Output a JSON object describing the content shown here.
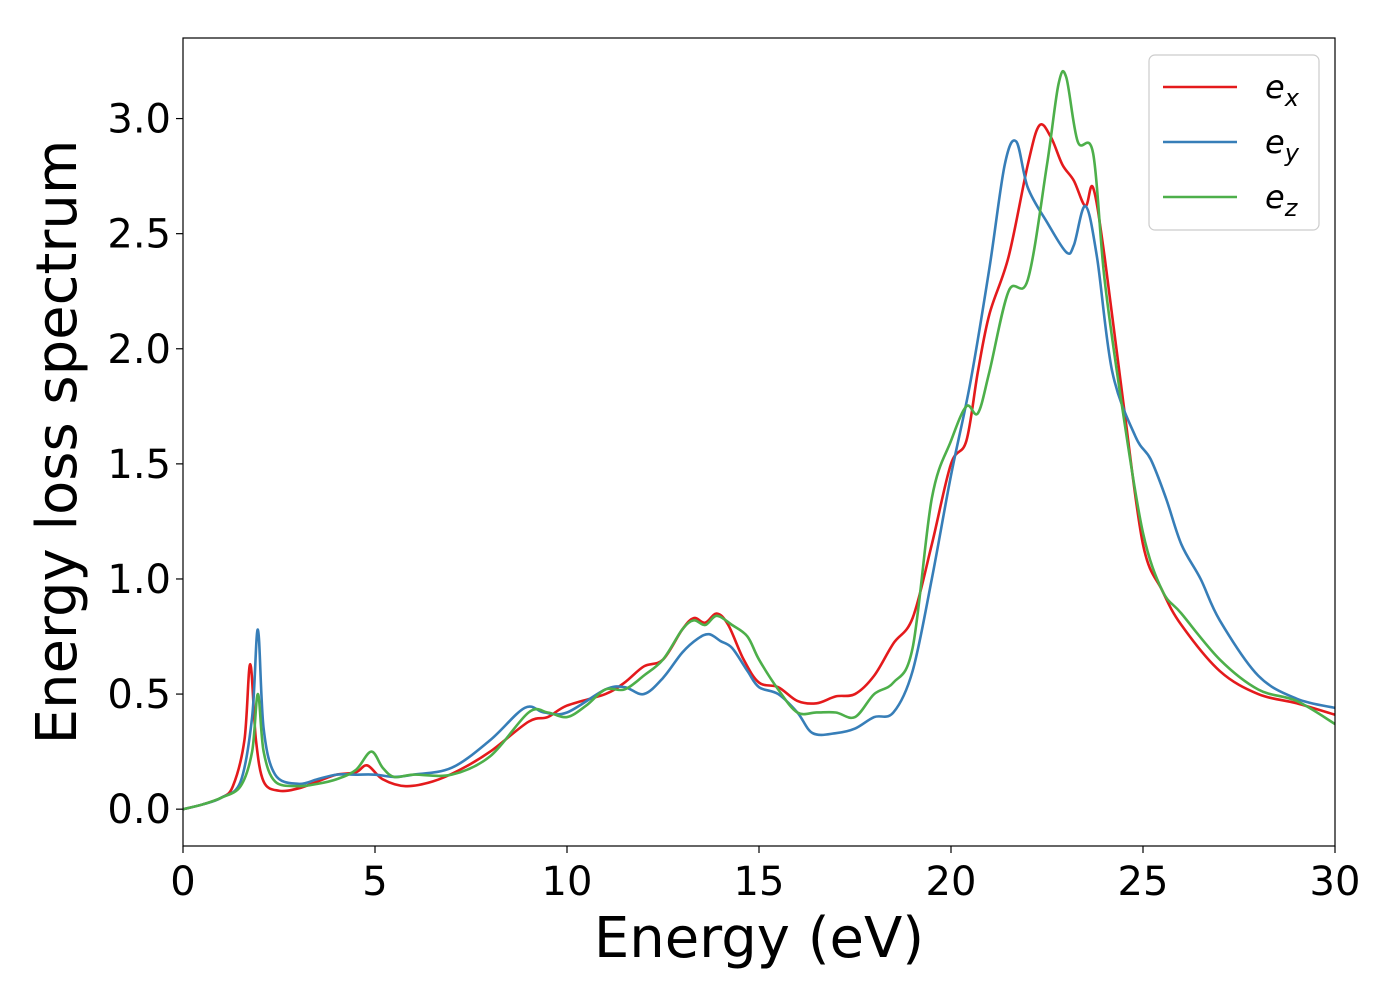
{
  "chart_data": {
    "type": "line",
    "xlabel": "Energy (eV)",
    "ylabel": "Energy loss spectrum",
    "xlim": [
      0,
      30
    ],
    "ylim": [
      -0.16,
      3.35
    ],
    "xticks": [
      0,
      5,
      10,
      15,
      20,
      25,
      30
    ],
    "xtick_labels": [
      "0",
      "5",
      "10",
      "15",
      "20",
      "25",
      "30"
    ],
    "yticks": [
      0.0,
      0.5,
      1.0,
      1.5,
      2.0,
      2.5,
      3.0
    ],
    "ytick_labels": [
      "0.0",
      "0.5",
      "1.0",
      "1.5",
      "2.0",
      "2.5",
      "3.0"
    ],
    "grid": false,
    "legend_position": "top-right",
    "series": [
      {
        "name": "e",
        "subscript": "x",
        "color": "#e41a1c",
        "x": [
          0,
          0.5,
          1.0,
          1.3,
          1.6,
          1.75,
          1.9,
          2.1,
          2.5,
          3.0,
          3.5,
          4.0,
          4.5,
          4.8,
          5.2,
          5.8,
          6.5,
          7.2,
          8.0,
          9.0,
          9.5,
          10.0,
          11.0,
          11.5,
          12.0,
          12.5,
          13.0,
          13.3,
          13.6,
          13.9,
          14.2,
          14.6,
          15.0,
          15.5,
          16.0,
          16.5,
          17.0,
          17.5,
          18.0,
          18.5,
          19.0,
          19.5,
          20.0,
          20.4,
          20.7,
          21.0,
          21.5,
          22.0,
          22.3,
          22.6,
          22.9,
          23.2,
          23.5,
          23.7,
          24.0,
          24.5,
          25.0,
          25.5,
          26.0,
          27.0,
          28.0,
          29.0,
          30.0
        ],
        "values": [
          0.0,
          0.02,
          0.05,
          0.1,
          0.3,
          0.63,
          0.3,
          0.12,
          0.08,
          0.09,
          0.12,
          0.15,
          0.16,
          0.19,
          0.13,
          0.1,
          0.12,
          0.17,
          0.25,
          0.38,
          0.4,
          0.45,
          0.5,
          0.55,
          0.62,
          0.65,
          0.78,
          0.83,
          0.81,
          0.85,
          0.8,
          0.65,
          0.55,
          0.53,
          0.47,
          0.46,
          0.49,
          0.5,
          0.58,
          0.72,
          0.83,
          1.15,
          1.5,
          1.6,
          1.9,
          2.15,
          2.4,
          2.8,
          2.97,
          2.92,
          2.8,
          2.73,
          2.62,
          2.7,
          2.4,
          1.75,
          1.15,
          0.95,
          0.8,
          0.6,
          0.5,
          0.46,
          0.41
        ]
      },
      {
        "name": "e",
        "subscript": "y",
        "color": "#377eb8",
        "x": [
          0,
          0.5,
          1.0,
          1.5,
          1.8,
          1.95,
          2.1,
          2.4,
          3.0,
          3.5,
          4.0,
          4.5,
          5.0,
          5.5,
          6.0,
          7.0,
          8.0,
          8.9,
          9.4,
          10.0,
          11.0,
          11.5,
          12.0,
          12.5,
          13.0,
          13.4,
          13.7,
          14.0,
          14.3,
          14.7,
          15.0,
          15.5,
          16.0,
          16.4,
          17.0,
          17.5,
          18.0,
          18.5,
          19.0,
          19.5,
          20.0,
          20.5,
          21.0,
          21.4,
          21.7,
          22.0,
          22.5,
          23.0,
          23.2,
          23.5,
          23.8,
          24.2,
          24.8,
          25.2,
          25.6,
          26.0,
          26.5,
          27.0,
          28.0,
          29.0,
          30.0
        ],
        "values": [
          0.0,
          0.02,
          0.05,
          0.12,
          0.4,
          0.78,
          0.35,
          0.15,
          0.11,
          0.13,
          0.15,
          0.15,
          0.15,
          0.14,
          0.15,
          0.18,
          0.3,
          0.44,
          0.42,
          0.42,
          0.52,
          0.53,
          0.5,
          0.57,
          0.68,
          0.74,
          0.76,
          0.73,
          0.7,
          0.6,
          0.53,
          0.5,
          0.42,
          0.33,
          0.33,
          0.35,
          0.4,
          0.42,
          0.6,
          1.0,
          1.45,
          1.85,
          2.35,
          2.8,
          2.9,
          2.7,
          2.55,
          2.42,
          2.45,
          2.62,
          2.4,
          1.9,
          1.62,
          1.52,
          1.35,
          1.15,
          1.0,
          0.82,
          0.58,
          0.48,
          0.44
        ]
      },
      {
        "name": "e",
        "subscript": "z",
        "color": "#4daf4a",
        "x": [
          0,
          0.5,
          1.0,
          1.5,
          1.8,
          1.95,
          2.1,
          2.4,
          3.0,
          3.5,
          4.0,
          4.5,
          4.9,
          5.2,
          5.5,
          6.0,
          7.0,
          8.0,
          9.0,
          9.5,
          10.0,
          10.5,
          11.0,
          11.5,
          12.0,
          12.5,
          13.0,
          13.3,
          13.6,
          13.9,
          14.3,
          14.7,
          15.0,
          15.5,
          16.0,
          16.5,
          17.0,
          17.5,
          18.0,
          18.5,
          19.0,
          19.5,
          20.0,
          20.4,
          20.7,
          21.0,
          21.5,
          22.0,
          22.5,
          22.8,
          23.0,
          23.3,
          23.7,
          24.0,
          24.5,
          25.0,
          25.5,
          26.0,
          27.0,
          28.0,
          29.0,
          30.0
        ],
        "values": [
          0.0,
          0.02,
          0.05,
          0.1,
          0.25,
          0.5,
          0.25,
          0.12,
          0.1,
          0.11,
          0.13,
          0.17,
          0.25,
          0.18,
          0.14,
          0.15,
          0.15,
          0.23,
          0.42,
          0.42,
          0.4,
          0.45,
          0.52,
          0.52,
          0.58,
          0.65,
          0.78,
          0.82,
          0.8,
          0.84,
          0.8,
          0.75,
          0.65,
          0.52,
          0.42,
          0.42,
          0.42,
          0.4,
          0.5,
          0.55,
          0.7,
          1.35,
          1.6,
          1.75,
          1.72,
          1.9,
          2.25,
          2.3,
          2.8,
          3.15,
          3.18,
          2.9,
          2.85,
          2.3,
          1.7,
          1.2,
          0.95,
          0.85,
          0.65,
          0.52,
          0.47,
          0.37
        ]
      }
    ]
  }
}
